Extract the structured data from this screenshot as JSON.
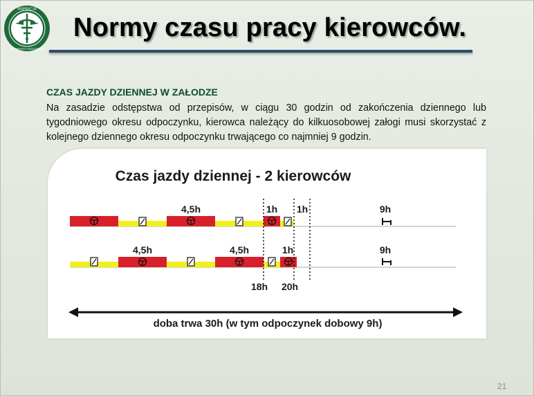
{
  "slide": {
    "title": "Normy czasu pracy kierowców.",
    "heading": "CZAS JAZDY DZIENNEJ W ZAŁODZE",
    "body": "Na zasadzie odstępstwa od przepisów, w ciągu 30 godzin od zakończenia dziennego lub tygodniowego okresu odpoczynku, kierowca należący do kilkuosobowej załogi musi skorzystać z kolejnego dziennego okresu odpoczynku trwającego co najmniej 9 godzin.",
    "page_number": "21"
  },
  "logo": {
    "ring_top": "INSPEKCJA",
    "ring_bottom": "TRANSPORTU DROGOWEGO",
    "colors": {
      "green": "#1d6a3a",
      "white": "#ffffff"
    }
  },
  "diagram": {
    "title": "Czas jazdy dziennej - 2 kierowców",
    "colors": {
      "drive": "#d8202a",
      "other_work": "#f2ef1e",
      "line": "#a9a9a9",
      "text": "#1a1a1a"
    },
    "row1": {
      "labels": {
        "drive2": "4,5h",
        "drive3": "1h",
        "gap": "1h",
        "rest": "9h"
      }
    },
    "row2": {
      "labels": {
        "drive1": "4,5h",
        "drive2": "4,5h",
        "drive3": "1h",
        "rest": "9h"
      }
    },
    "markers": {
      "m18": "18h",
      "m20": "20h"
    },
    "span_label": "doba trwa 30h (w tym odpoczynek dobowy 9h)"
  }
}
